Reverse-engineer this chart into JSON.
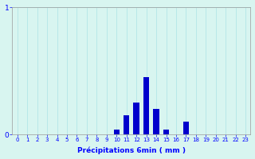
{
  "categories": [
    0,
    1,
    2,
    3,
    4,
    5,
    6,
    7,
    8,
    9,
    10,
    11,
    12,
    13,
    14,
    15,
    16,
    17,
    18,
    19,
    20,
    21,
    22,
    23
  ],
  "values": [
    0,
    0,
    0,
    0,
    0,
    0,
    0,
    0,
    0,
    0,
    0.04,
    0.15,
    0.25,
    0.45,
    0.2,
    0.04,
    0,
    0.1,
    0,
    0,
    0,
    0,
    0,
    0
  ],
  "bar_color": "#0000cc",
  "background_color": "#d8f5f0",
  "grid_color": "#b8e8e8",
  "xlabel": "Précipitations 6min ( mm )",
  "ylim": [
    0,
    1.0
  ],
  "yticks": [
    0,
    1
  ],
  "xlim": [
    -0.5,
    23.5
  ],
  "bar_width": 0.6
}
